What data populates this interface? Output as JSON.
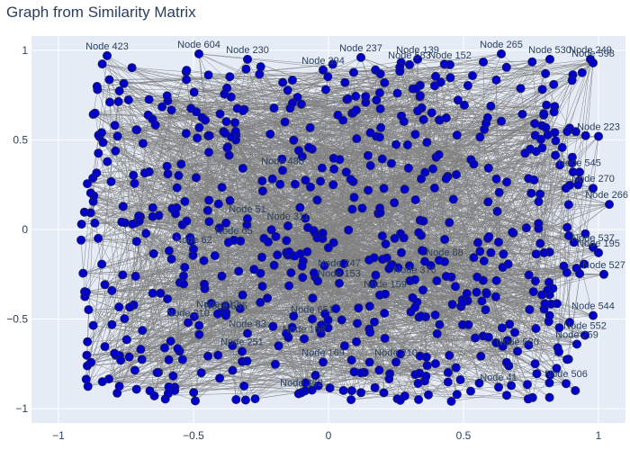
{
  "chart_data": {
    "type": "scatter",
    "title": "Graph from Similarity Matrix",
    "xlabel": "",
    "ylabel": "",
    "xlim": [
      -1.1,
      1.1
    ],
    "ylim": [
      -1.08,
      1.08
    ],
    "x_ticks": [
      -1,
      -0.5,
      0,
      0.5,
      1
    ],
    "y_ticks": [
      -1,
      -0.5,
      0,
      0.5,
      1
    ],
    "x_tick_labels": [
      "−1",
      "−0.5",
      "0",
      "0.5",
      "1"
    ],
    "y_tick_labels": [
      "−1",
      "−0.5",
      "0",
      "0.5",
      "1"
    ],
    "grid": true,
    "legend": "none",
    "node_count": 653,
    "edge_color": "#808080",
    "node_color": "#0000cc",
    "node_border": "#1a1a66",
    "background": "#e5ecf6",
    "labeled_nodes": [
      {
        "label": "Node 423",
        "x": -0.82,
        "y": 0.97
      },
      {
        "label": "Node 604",
        "x": -0.48,
        "y": 0.98
      },
      {
        "label": "Node 230",
        "x": -0.3,
        "y": 0.95
      },
      {
        "label": "Node 237",
        "x": 0.12,
        "y": 0.96
      },
      {
        "label": "Node 139",
        "x": 0.33,
        "y": 0.95
      },
      {
        "label": "Node 265",
        "x": 0.64,
        "y": 0.98
      },
      {
        "label": "Node 530",
        "x": 0.82,
        "y": 0.95
      },
      {
        "label": "Node 249",
        "x": 0.97,
        "y": 0.95
      },
      {
        "label": "Node 583",
        "x": 0.3,
        "y": 0.92
      },
      {
        "label": "Node 152",
        "x": 0.45,
        "y": 0.92
      },
      {
        "label": "Node 394",
        "x": -0.02,
        "y": 0.89
      },
      {
        "label": "Node 598",
        "x": 0.98,
        "y": 0.93
      },
      {
        "label": "Node 223",
        "x": 1.0,
        "y": 0.52
      },
      {
        "label": "Node 545",
        "x": 0.93,
        "y": 0.32
      },
      {
        "label": "Node 270",
        "x": 0.98,
        "y": 0.23
      },
      {
        "label": "Node 266",
        "x": 1.04,
        "y": 0.14
      },
      {
        "label": "Node 195",
        "x": 1.0,
        "y": -0.13
      },
      {
        "label": "Node 537",
        "x": 0.98,
        "y": -0.1
      },
      {
        "label": "Node 527",
        "x": 1.02,
        "y": -0.25
      },
      {
        "label": "Node 544",
        "x": 0.98,
        "y": -0.48
      },
      {
        "label": "Node 552",
        "x": 0.95,
        "y": -0.59
      },
      {
        "label": "Node 259",
        "x": 0.92,
        "y": -0.64
      },
      {
        "label": "Node 506",
        "x": 0.88,
        "y": -0.86
      },
      {
        "label": "Node 311",
        "x": -0.15,
        "y": 0.02
      },
      {
        "label": "Node 480",
        "x": -0.17,
        "y": 0.33
      },
      {
        "label": "Node 376",
        "x": 0.32,
        "y": -0.28
      },
      {
        "label": "Node 153",
        "x": 0.04,
        "y": -0.3
      },
      {
        "label": "Node 247",
        "x": 0.04,
        "y": -0.24
      },
      {
        "label": "Node 62",
        "x": -0.5,
        "y": -0.11
      },
      {
        "label": "Node 65",
        "x": -0.35,
        "y": -0.06
      },
      {
        "label": "Node 51",
        "x": -0.3,
        "y": 0.06
      },
      {
        "label": "Node 310",
        "x": -0.52,
        "y": -0.52
      },
      {
        "label": "Node 412",
        "x": -0.41,
        "y": -0.47
      },
      {
        "label": "Node 535",
        "x": -0.38,
        "y": -0.48
      },
      {
        "label": "Node 158",
        "x": -0.09,
        "y": -0.61
      },
      {
        "label": "Node 362",
        "x": -0.1,
        "y": -0.91
      },
      {
        "label": "Node 210",
        "x": 0.25,
        "y": -0.74
      },
      {
        "label": "Node 41",
        "x": 0.63,
        "y": -0.88
      },
      {
        "label": "Node 580",
        "x": 0.7,
        "y": -0.68
      },
      {
        "label": "Node 159",
        "x": 0.21,
        "y": -0.36
      },
      {
        "label": "Node 88",
        "x": 0.43,
        "y": -0.18
      },
      {
        "label": "Node 83",
        "x": -0.3,
        "y": -0.58
      },
      {
        "label": "Node 651",
        "x": -0.06,
        "y": -0.5
      },
      {
        "label": "Node 169",
        "x": -0.02,
        "y": -0.74
      },
      {
        "label": "Node 251",
        "x": -0.32,
        "y": -0.68
      }
    ]
  }
}
